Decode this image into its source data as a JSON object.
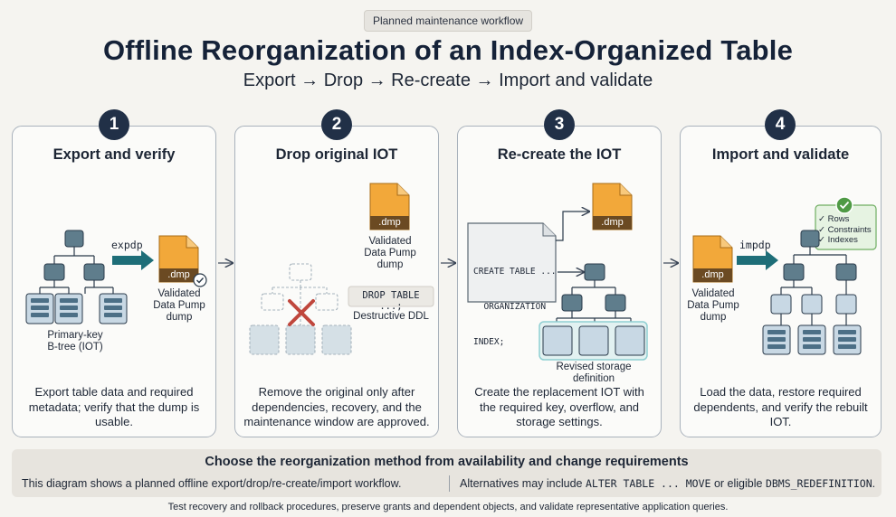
{
  "header": {
    "tag": "Planned maintenance workflow",
    "title": "Offline Reorganization of an Index-Organized Table",
    "subtitle": "Export → Drop → Re-create → Import and validate"
  },
  "steps": [
    {
      "number": "1",
      "title": "Export and verify",
      "command": "expdp",
      "file_label": ".dmp",
      "dump_label": "Validated\nData Pump\ndump",
      "tree_label": "Primary-key\nB-tree (IOT)",
      "description": "Export table data and required metadata; verify that the dump is usable."
    },
    {
      "number": "2",
      "title": "Drop original IOT",
      "file_label": ".dmp",
      "dump_label": "Validated\nData Pump\ndump",
      "ddl": "DROP TABLE ...;",
      "ddl_label": "Destructive DDL",
      "description": "Remove the original only after dependencies, recovery, and the maintenance window are approved."
    },
    {
      "number": "3",
      "title": "Re-create the IOT",
      "file_label": ".dmp",
      "sql_lines": [
        "CREATE TABLE ...",
        "  ORGANIZATION",
        "INDEX;"
      ],
      "storage_label": "Revised storage definition",
      "description": "Create the replacement IOT with the required key, overflow, and storage settings."
    },
    {
      "number": "4",
      "title": "Import and validate",
      "command": "impdp",
      "file_label": ".dmp",
      "dump_label": "Validated\nData Pump\ndump",
      "checklist": [
        "Rows",
        "Constraints",
        "Indexes"
      ],
      "description": "Load the data, restore required dependents, and verify the rebuilt IOT."
    }
  ],
  "panel": {
    "title": "Choose the reorganization method from availability and change requirements",
    "left_text": "This diagram shows a planned offline export/drop/re-create/import workflow.",
    "right_prefix": "Alternatives may include",
    "right_code1": "ALTER TABLE ... MOVE",
    "right_mid": "or eligible",
    "right_code2": "DBMS_REDEFINITION",
    "right_suffix": "."
  },
  "footer": "Test recovery and rollback procedures, preserve grants and dependent objects, and validate representative application queries.",
  "colors": {
    "navy": "#213047",
    "node": "#5f7d8c",
    "teal": "#1e6e78",
    "orange": "#f2a83a"
  }
}
